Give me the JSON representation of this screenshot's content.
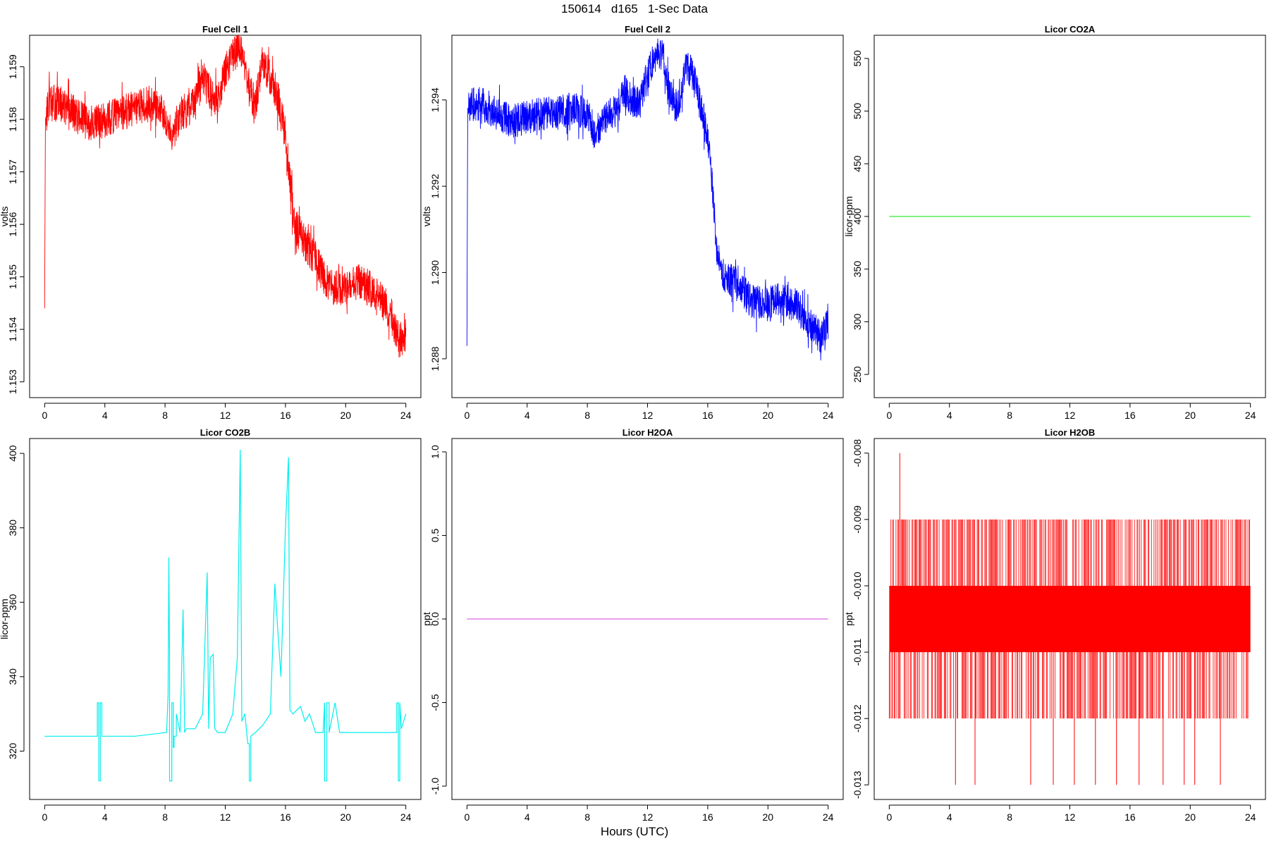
{
  "figure": {
    "title": "150614   d165   1-Sec Data",
    "x_axis_title": "Hours (UTC)"
  },
  "chart_data": [
    {
      "type": "line",
      "title": "Fuel Cell 1",
      "xlabel": "",
      "ylabel": "volts",
      "xlim": [
        -1,
        25
      ],
      "ylim": [
        1.1527,
        1.1596
      ],
      "xticks": [
        0,
        4,
        8,
        12,
        16,
        20,
        24
      ],
      "yticks": [
        1.153,
        1.154,
        1.155,
        1.156,
        1.157,
        1.158,
        1.159
      ],
      "color": "#ff0000",
      "noise": 0.00035,
      "x": [
        0,
        0.05,
        0.3,
        1,
        2,
        3,
        4,
        5,
        6,
        7,
        8,
        8.5,
        9,
        10,
        10.5,
        11,
        11.5,
        12,
        12.5,
        13,
        13.5,
        14,
        14.5,
        15,
        15.5,
        16,
        16.3,
        16.6,
        17,
        18,
        19,
        20,
        21,
        22,
        23,
        23.5,
        24
      ],
      "y": [
        1.1544,
        1.158,
        1.1583,
        1.1583,
        1.1581,
        1.1579,
        1.158,
        1.1581,
        1.1582,
        1.1583,
        1.1581,
        1.1577,
        1.1581,
        1.1583,
        1.1588,
        1.1585,
        1.1584,
        1.1589,
        1.1592,
        1.1594,
        1.1586,
        1.1583,
        1.1591,
        1.1588,
        1.1584,
        1.1577,
        1.1568,
        1.156,
        1.1558,
        1.1553,
        1.1548,
        1.1548,
        1.1549,
        1.1547,
        1.1543,
        1.1538,
        1.1539
      ]
    },
    {
      "type": "line",
      "title": "Fuel Cell 2",
      "xlabel": "",
      "ylabel": "volts",
      "xlim": [
        -1,
        25
      ],
      "ylim": [
        1.2871,
        1.2955
      ],
      "xticks": [
        0,
        4,
        8,
        12,
        16,
        20,
        24
      ],
      "yticks": [
        1.288,
        1.29,
        1.292,
        1.294
      ],
      "ytick_labels": [
        "1.288",
        "1.290",
        "1.292",
        "1.294"
      ],
      "color": "#0000ff",
      "noise": 0.0004,
      "x": [
        0,
        0.05,
        0.3,
        1,
        2,
        3,
        4,
        5,
        6,
        7,
        8,
        8.5,
        9,
        10,
        10.5,
        11,
        11.5,
        12,
        12.5,
        13,
        13.5,
        14,
        14.5,
        15,
        15.5,
        16,
        16.3,
        16.6,
        17,
        18,
        19,
        20,
        21,
        22,
        23,
        23.5,
        24
      ],
      "y": [
        1.2883,
        1.2938,
        1.2939,
        1.2939,
        1.2937,
        1.2935,
        1.2936,
        1.2937,
        1.2937,
        1.2938,
        1.2937,
        1.2932,
        1.2935,
        1.2938,
        1.2942,
        1.294,
        1.2939,
        1.2946,
        1.295,
        1.2951,
        1.2941,
        1.2938,
        1.2948,
        1.2946,
        1.2939,
        1.2931,
        1.292,
        1.2905,
        1.29,
        1.2897,
        1.2893,
        1.2893,
        1.2894,
        1.2892,
        1.2887,
        1.2885,
        1.2888
      ]
    },
    {
      "type": "line",
      "title": "Licor CO2A",
      "xlabel": "",
      "ylabel": "licor-ppm",
      "xlim": [
        -1,
        25
      ],
      "ylim": [
        228,
        572
      ],
      "xticks": [
        0,
        4,
        8,
        12,
        16,
        20,
        24
      ],
      "yticks": [
        250,
        300,
        350,
        400,
        450,
        500,
        550
      ],
      "color": "#33ee33",
      "noise": 0,
      "x": [
        0,
        24
      ],
      "y": [
        400,
        400
      ]
    },
    {
      "type": "line",
      "title": "Licor CO2B",
      "xlabel": "",
      "ylabel": "licor-ppm",
      "xlim": [
        -1,
        25
      ],
      "ylim": [
        307,
        404
      ],
      "xticks": [
        0,
        4,
        8,
        12,
        16,
        20,
        24
      ],
      "yticks": [
        320,
        340,
        360,
        380,
        400
      ],
      "color": "#00eeee",
      "noise": 0,
      "x": [
        0,
        3.5,
        3.5,
        3.6,
        3.6,
        3.7,
        3.7,
        3.8,
        3.8,
        6,
        8.1,
        8.2,
        8.25,
        8.3,
        8.3,
        8.45,
        8.45,
        8.55,
        8.55,
        8.6,
        8.6,
        8.75,
        8.75,
        9.0,
        9.2,
        9.3,
        9.4,
        10,
        10.5,
        10.8,
        10.9,
        11.0,
        11.2,
        11.3,
        11.5,
        12,
        12.5,
        12.8,
        13.0,
        13.1,
        13.3,
        13.5,
        13.6,
        13.6,
        13.7,
        13.7,
        14,
        14.5,
        15.0,
        15.3,
        15.5,
        15.7,
        16.0,
        16.2,
        16.3,
        16.5,
        17.0,
        17.3,
        17.6,
        18,
        18.5,
        18.6,
        18.6,
        18.75,
        18.75,
        18.9,
        18.9,
        19.3,
        19.6,
        20,
        23,
        23.4,
        23.4,
        23.5,
        23.5,
        23.6,
        23.6,
        23.7,
        24
      ],
      "y": [
        324,
        324,
        333,
        333,
        312,
        312,
        333,
        333,
        324,
        324,
        325,
        335,
        372,
        345,
        312,
        312,
        333,
        333,
        321,
        321,
        324,
        324,
        330,
        325,
        358,
        325,
        326,
        326,
        330,
        368,
        326,
        345,
        346,
        326,
        325,
        325,
        330,
        345,
        401,
        328,
        330,
        322,
        322,
        312,
        312,
        324,
        325,
        327,
        330,
        365,
        352,
        340,
        380,
        399,
        331,
        330,
        332,
        328,
        330,
        325,
        325,
        333,
        312,
        312,
        333,
        333,
        325,
        333,
        325,
        325,
        325,
        325,
        333,
        333,
        312,
        312,
        333,
        326,
        330
      ]
    },
    {
      "type": "line",
      "title": "Licor H2OA",
      "xlabel": "",
      "ylabel": "ppt",
      "xlim": [
        -1,
        25
      ],
      "ylim": [
        -1.08,
        1.08
      ],
      "xticks": [
        0,
        4,
        8,
        12,
        16,
        20,
        24
      ],
      "yticks": [
        -1.0,
        -0.5,
        0.0,
        0.5,
        1.0
      ],
      "ytick_labels": [
        "-1.0",
        "-0.5",
        "0.0",
        "0.5",
        "1.0"
      ],
      "color": "#dd66dd",
      "noise": 0,
      "x": [
        0,
        24
      ],
      "y": [
        0,
        0
      ]
    },
    {
      "type": "line",
      "title": "Licor H2OB",
      "xlabel": "",
      "ylabel": "ppt",
      "xlim": [
        -1,
        25
      ],
      "ylim": [
        -0.01322,
        -0.00778
      ],
      "xticks": [
        0,
        4,
        8,
        12,
        16,
        20,
        24
      ],
      "yticks": [
        -0.013,
        -0.012,
        -0.011,
        -0.01,
        -0.009,
        -0.008
      ],
      "ytick_labels": [
        "-0.013",
        "-0.012",
        "-0.011",
        "-0.010",
        "-0.009",
        "-0.008"
      ],
      "color": "#ff0000",
      "noise": 0,
      "band": {
        "low": -0.011,
        "high": -0.01
      },
      "x": [
        0,
        0.7,
        1,
        4.4,
        5.7,
        9.4,
        10.9,
        12.3,
        13.7,
        15.1,
        16.6,
        18.2,
        19.6,
        20.3,
        22.0,
        24
      ],
      "y": [
        -0.01,
        -0.008,
        -0.012,
        -0.013,
        -0.013,
        -0.013,
        -0.013,
        -0.013,
        -0.013,
        -0.013,
        -0.013,
        -0.013,
        -0.013,
        -0.013,
        -0.013,
        -0.011
      ]
    }
  ]
}
